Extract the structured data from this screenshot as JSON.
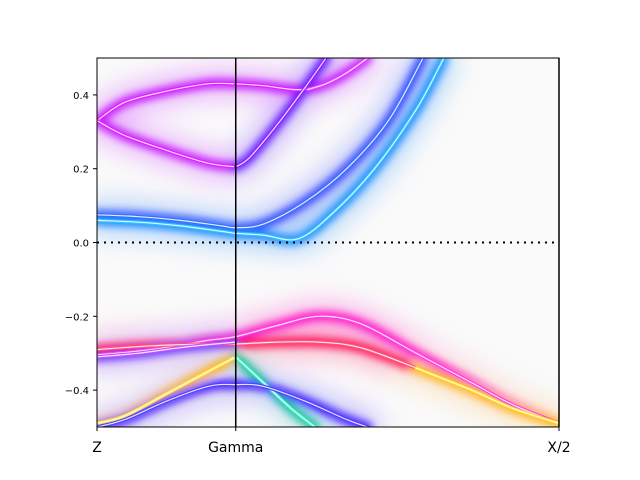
{
  "chart_data": {
    "type": "line",
    "title": "",
    "xlabel": "",
    "ylabel": "",
    "ylim": [
      -0.5,
      0.5
    ],
    "xlim": [
      0,
      3.33
    ],
    "grid": false,
    "x_ticks": [
      {
        "x": 0.0,
        "label": "Z"
      },
      {
        "x": 1.0,
        "label": "Gamma"
      },
      {
        "x": 3.33,
        "label": "X/2"
      }
    ],
    "y_ticks": [
      {
        "y": 0.4,
        "label": "0.4"
      },
      {
        "y": 0.2,
        "label": "0.2"
      },
      {
        "y": 0.0,
        "label": "0.0"
      },
      {
        "y": -0.2,
        "label": "−0.2"
      },
      {
        "y": -0.4,
        "label": "−0.4"
      }
    ],
    "fermi_level": 0.0,
    "series": [
      {
        "color": "#e020ff",
        "glow": "#c000ff",
        "x": [
          0,
          0.2,
          0.5,
          0.8,
          1.0
        ],
        "y": [
          0.33,
          0.38,
          0.41,
          0.43,
          0.43
        ]
      },
      {
        "color": "#e020ff",
        "glow": "#c000ff",
        "x": [
          1.0,
          1.2,
          1.4,
          1.52
        ],
        "y": [
          0.43,
          0.425,
          0.415,
          0.415
        ]
      },
      {
        "color": "#e040ff",
        "glow": "#c000ff",
        "x": [
          1.52,
          1.65,
          1.8,
          1.95
        ],
        "y": [
          0.415,
          0.43,
          0.46,
          0.5
        ]
      },
      {
        "color": "#e020ff",
        "glow": "#c000ff",
        "x": [
          0,
          0.2,
          0.5,
          0.8,
          1.0
        ],
        "y": [
          0.33,
          0.29,
          0.25,
          0.215,
          0.205
        ]
      },
      {
        "color": "#9020ff",
        "glow": "#5000ff",
        "x": [
          1.0,
          1.1,
          1.3,
          1.5,
          1.65
        ],
        "y": [
          0.205,
          0.23,
          0.32,
          0.42,
          0.5
        ]
      },
      {
        "color": "#3a70ff",
        "glow": "#2030ff",
        "x": [
          0,
          0.3,
          0.6,
          0.9,
          1.0,
          1.2,
          1.5,
          1.8,
          2.1,
          2.35
        ],
        "y": [
          0.075,
          0.07,
          0.06,
          0.045,
          0.04,
          0.05,
          0.11,
          0.2,
          0.33,
          0.5
        ]
      },
      {
        "color": "#30c0ff",
        "glow": "#0080ff",
        "x": [
          0,
          0.3,
          0.6,
          0.9,
          1.0,
          1.2,
          1.45,
          1.7,
          2.0,
          2.3,
          2.5
        ],
        "y": [
          0.06,
          0.055,
          0.045,
          0.03,
          0.025,
          0.02,
          0.01,
          0.08,
          0.2,
          0.36,
          0.5
        ]
      },
      {
        "color": "#ff40e0",
        "glow": "#ff00c0",
        "x": [
          0,
          0.4,
          0.8,
          1.0,
          1.3,
          1.6,
          1.9,
          2.3,
          2.7,
          3.0,
          3.33
        ],
        "y": [
          -0.305,
          -0.29,
          -0.265,
          -0.255,
          -0.225,
          -0.2,
          -0.22,
          -0.3,
          -0.38,
          -0.44,
          -0.49
        ]
      },
      {
        "color": "#ff5080",
        "glow": "#ff0040",
        "x": [
          0,
          0.4,
          0.8,
          1.0,
          1.3,
          1.6,
          1.9,
          2.3,
          2.7,
          3.0,
          3.33
        ],
        "y": [
          -0.29,
          -0.28,
          -0.275,
          -0.275,
          -0.27,
          -0.27,
          -0.285,
          -0.34,
          -0.4,
          -0.45,
          -0.49
        ]
      },
      {
        "color": "#ffe020",
        "glow": "#ffb000",
        "x": [
          2.3,
          2.7,
          3.0,
          3.33
        ],
        "y": [
          -0.34,
          -0.4,
          -0.45,
          -0.49
        ]
      },
      {
        "color": "#c050ff",
        "glow": "#6020ff",
        "x": [
          0,
          0.3,
          0.6,
          0.85,
          1.0
        ],
        "y": [
          -0.31,
          -0.3,
          -0.285,
          -0.275,
          -0.27
        ]
      },
      {
        "color": "#ffe040",
        "glow": "#ffb000",
        "x": [
          0,
          0.2,
          0.5,
          0.8,
          1.0
        ],
        "y": [
          -0.49,
          -0.47,
          -0.41,
          -0.35,
          -0.31
        ]
      },
      {
        "color": "#40f0c0",
        "glow": "#00c090",
        "x": [
          1.0,
          1.2,
          1.4,
          1.57
        ],
        "y": [
          -0.31,
          -0.38,
          -0.45,
          -0.5
        ]
      },
      {
        "color": "#5040ff",
        "glow": "#3000ff",
        "x": [
          0,
          0.2,
          0.5,
          0.8,
          1.0,
          1.2,
          1.5,
          1.8,
          1.95
        ],
        "y": [
          -0.5,
          -0.48,
          -0.43,
          -0.39,
          -0.385,
          -0.39,
          -0.43,
          -0.48,
          -0.5
        ]
      }
    ]
  }
}
